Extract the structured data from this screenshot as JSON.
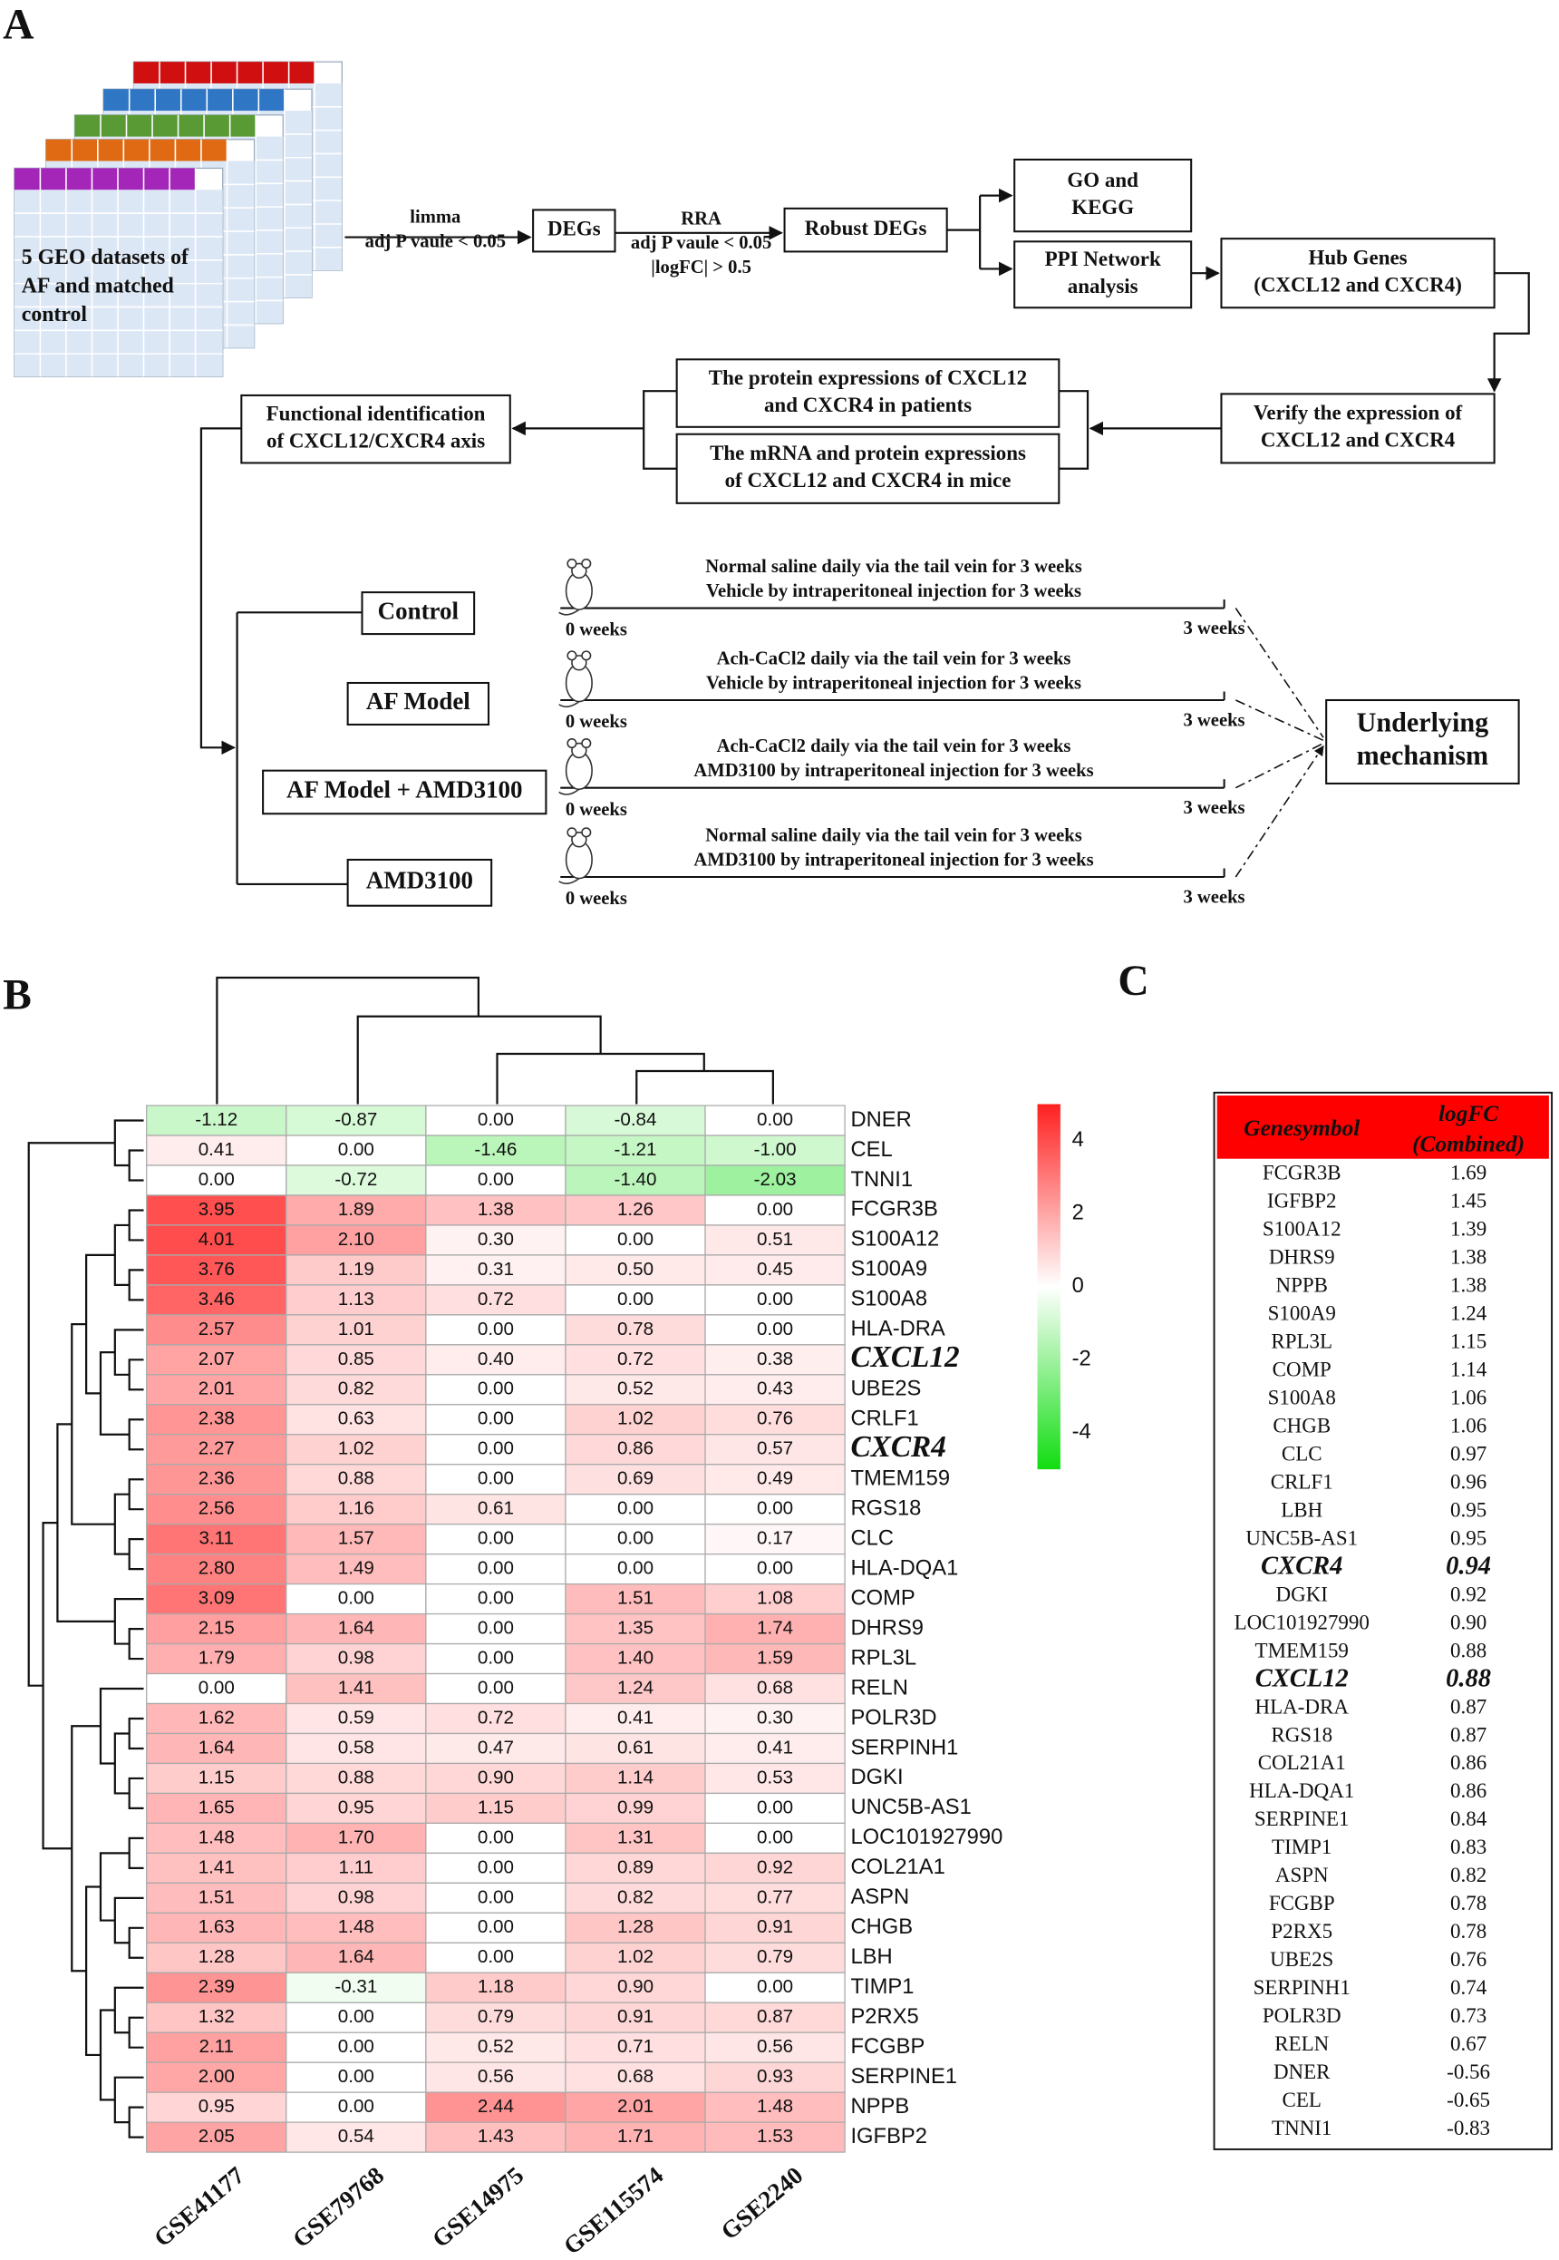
{
  "panel_labels": [
    "A",
    "B",
    "C"
  ],
  "flowchart": {
    "datasets_label": [
      "5 GEO datasets of",
      "AF and matched",
      "control"
    ],
    "edge_labels": [
      {
        "lines": [
          "limma",
          "adj P vaule < 0.05"
        ]
      },
      {
        "lines": [
          "RRA",
          "adj P vaule < 0.05",
          "|logFC| > 0.5"
        ]
      }
    ],
    "nodes": [
      {
        "lines": [
          "DEGs"
        ]
      },
      {
        "lines": [
          "Robust DEGs"
        ]
      },
      {
        "lines": [
          "GO and",
          "KEGG"
        ]
      },
      {
        "lines": [
          "PPI Network",
          "analysis"
        ]
      },
      {
        "lines": [
          "Hub Genes",
          "(CXCL12  and  CXCR4)"
        ]
      },
      {
        "lines": [
          "Verify  the expression of",
          "CXCL12  and  CXCR4"
        ]
      },
      {
        "lines": [
          "The protein expressions of CXCL12",
          "and  CXCR4  in patients"
        ]
      },
      {
        "lines": [
          "The  mRNA  and  protein  expressions",
          "of CXCL12  and  CXCR4  in mice"
        ]
      },
      {
        "lines": [
          "Functional identification",
          "of CXCL12/CXCR4  axis"
        ]
      },
      {
        "lines": [
          "Control"
        ]
      },
      {
        "lines": [
          "AF Model"
        ]
      },
      {
        "lines": [
          "AF Model + AMD3100"
        ]
      },
      {
        "lines": [
          "AMD3100"
        ]
      },
      {
        "lines": [
          "Underlying",
          "mechanism"
        ]
      }
    ],
    "timelines": [
      {
        "lines": [
          "Normal saline daily via the tail vein for 3 weeks",
          "Vehicle  by intraperitoneal injection for 3 weeks"
        ],
        "start": "0 weeks",
        "end": "3 weeks"
      },
      {
        "lines": [
          "Ach-CaCl2 daily via the tail vein for 3 weeks",
          "Vehicle  by intraperitoneal injection for 3 weeks"
        ],
        "start": "0 weeks",
        "end": "3 weeks"
      },
      {
        "lines": [
          "Ach-CaCl2 daily via the tail vein for 3 weeks",
          "AMD3100 by intraperitoneal injection for 3 weeks"
        ],
        "start": "0 weeks",
        "end": "3 weeks"
      },
      {
        "lines": [
          "Normal saline daily via the tail vein for 3 weeks",
          "AMD3100  by intraperitoneal injection for 3 weeks"
        ],
        "start": "0 weeks",
        "end": "3 weeks"
      }
    ]
  },
  "highlighted": [
    "CXCL12",
    "CXCR4"
  ],
  "heatmap": {
    "columns": [
      "GSE41177",
      "GSE79768",
      "GSE14975",
      "GSE115574",
      "GSE2240"
    ],
    "colors": {
      "high": "#ff2020",
      "mid": "#ffffff",
      "low": "#11dd11"
    },
    "clim": [
      -5,
      5
    ],
    "colorbar_ticks": [
      4,
      2,
      0,
      -2,
      -4
    ],
    "rows": [
      {
        "gene": "DNER",
        "values": [
          "-1.12",
          "-0.87",
          "0.00",
          "-0.84",
          "0.00"
        ]
      },
      {
        "gene": "CEL",
        "values": [
          "0.41",
          "0.00",
          "-1.46",
          "-1.21",
          "-1.00"
        ]
      },
      {
        "gene": "TNNI1",
        "values": [
          "0.00",
          "-0.72",
          "0.00",
          "-1.40",
          "-2.03"
        ]
      },
      {
        "gene": "FCGR3B",
        "values": [
          "3.95",
          "1.89",
          "1.38",
          "1.26",
          "0.00"
        ]
      },
      {
        "gene": "S100A12",
        "values": [
          "4.01",
          "2.10",
          "0.30",
          "0.00",
          "0.51"
        ]
      },
      {
        "gene": "S100A9",
        "values": [
          "3.76",
          "1.19",
          "0.31",
          "0.50",
          "0.45"
        ]
      },
      {
        "gene": "S100A8",
        "values": [
          "3.46",
          "1.13",
          "0.72",
          "0.00",
          "0.00"
        ]
      },
      {
        "gene": "HLA-DRA",
        "values": [
          "2.57",
          "1.01",
          "0.00",
          "0.78",
          "0.00"
        ]
      },
      {
        "gene": "CXCL12",
        "values": [
          "2.07",
          "0.85",
          "0.40",
          "0.72",
          "0.38"
        ]
      },
      {
        "gene": "UBE2S",
        "values": [
          "2.01",
          "0.82",
          "0.00",
          "0.52",
          "0.43"
        ]
      },
      {
        "gene": "CRLF1",
        "values": [
          "2.38",
          "0.63",
          "0.00",
          "1.02",
          "0.76"
        ]
      },
      {
        "gene": "CXCR4",
        "values": [
          "2.27",
          "1.02",
          "0.00",
          "0.86",
          "0.57"
        ]
      },
      {
        "gene": "TMEM159",
        "values": [
          "2.36",
          "0.88",
          "0.00",
          "0.69",
          "0.49"
        ]
      },
      {
        "gene": "RGS18",
        "values": [
          "2.56",
          "1.16",
          "0.61",
          "0.00",
          "0.00"
        ]
      },
      {
        "gene": "CLC",
        "values": [
          "3.11",
          "1.57",
          "0.00",
          "0.00",
          "0.17"
        ]
      },
      {
        "gene": "HLA-DQA1",
        "values": [
          "2.80",
          "1.49",
          "0.00",
          "0.00",
          "0.00"
        ]
      },
      {
        "gene": "COMP",
        "values": [
          "3.09",
          "0.00",
          "0.00",
          "1.51",
          "1.08"
        ]
      },
      {
        "gene": "DHRS9",
        "values": [
          "2.15",
          "1.64",
          "0.00",
          "1.35",
          "1.74"
        ]
      },
      {
        "gene": "RPL3L",
        "values": [
          "1.79",
          "0.98",
          "0.00",
          "1.40",
          "1.59"
        ]
      },
      {
        "gene": "RELN",
        "values": [
          "0.00",
          "1.41",
          "0.00",
          "1.24",
          "0.68"
        ]
      },
      {
        "gene": "POLR3D",
        "values": [
          "1.62",
          "0.59",
          "0.72",
          "0.41",
          "0.30"
        ]
      },
      {
        "gene": "SERPINH1",
        "values": [
          "1.64",
          "0.58",
          "0.47",
          "0.61",
          "0.41"
        ]
      },
      {
        "gene": "DGKI",
        "values": [
          "1.15",
          "0.88",
          "0.90",
          "1.14",
          "0.53"
        ]
      },
      {
        "gene": "UNC5B-AS1",
        "values": [
          "1.65",
          "0.95",
          "1.15",
          "0.99",
          "0.00"
        ]
      },
      {
        "gene": "LOC101927990",
        "values": [
          "1.48",
          "1.70",
          "0.00",
          "1.31",
          "0.00"
        ]
      },
      {
        "gene": "COL21A1",
        "values": [
          "1.41",
          "1.11",
          "0.00",
          "0.89",
          "0.92"
        ]
      },
      {
        "gene": "ASPN",
        "values": [
          "1.51",
          "0.98",
          "0.00",
          "0.82",
          "0.77"
        ]
      },
      {
        "gene": "CHGB",
        "values": [
          "1.63",
          "1.48",
          "0.00",
          "1.28",
          "0.91"
        ]
      },
      {
        "gene": "LBH",
        "values": [
          "1.28",
          "1.64",
          "0.00",
          "1.02",
          "0.79"
        ]
      },
      {
        "gene": "TIMP1",
        "values": [
          "2.39",
          "-0.31",
          "1.18",
          "0.90",
          "0.00"
        ]
      },
      {
        "gene": "P2RX5",
        "values": [
          "1.32",
          "0.00",
          "0.79",
          "0.91",
          "0.87"
        ]
      },
      {
        "gene": "FCGBP",
        "values": [
          "2.11",
          "0.00",
          "0.52",
          "0.71",
          "0.56"
        ]
      },
      {
        "gene": "SERPINE1",
        "values": [
          "2.00",
          "0.00",
          "0.56",
          "0.68",
          "0.93"
        ]
      },
      {
        "gene": "NPPB",
        "values": [
          "0.95",
          "0.00",
          "2.44",
          "2.01",
          "1.48"
        ]
      },
      {
        "gene": "IGFBP2",
        "values": [
          "2.05",
          "0.54",
          "1.43",
          "1.71",
          "1.53"
        ]
      }
    ]
  },
  "table": {
    "header": [
      "Genesymbol",
      [
        "logFC",
        "(Combined)"
      ]
    ],
    "rows": [
      [
        "FCGR3B",
        "1.69"
      ],
      [
        "IGFBP2",
        "1.45"
      ],
      [
        "S100A12",
        "1.39"
      ],
      [
        "DHRS9",
        "1.38"
      ],
      [
        "NPPB",
        "1.38"
      ],
      [
        "S100A9",
        "1.24"
      ],
      [
        "RPL3L",
        "1.15"
      ],
      [
        "COMP",
        "1.14"
      ],
      [
        "S100A8",
        "1.06"
      ],
      [
        "CHGB",
        "1.06"
      ],
      [
        "CLC",
        "0.97"
      ],
      [
        "CRLF1",
        "0.96"
      ],
      [
        "LBH",
        "0.95"
      ],
      [
        "UNC5B-AS1",
        "0.95"
      ],
      [
        "CXCR4",
        "0.94"
      ],
      [
        "DGKI",
        "0.92"
      ],
      [
        "LOC101927990",
        "0.90"
      ],
      [
        "TMEM159",
        "0.88"
      ],
      [
        "CXCL12",
        "0.88"
      ],
      [
        "HLA-DRA",
        "0.87"
      ],
      [
        "RGS18",
        "0.87"
      ],
      [
        "COL21A1",
        "0.86"
      ],
      [
        "HLA-DQA1",
        "0.86"
      ],
      [
        "SERPINE1",
        "0.84"
      ],
      [
        "TIMP1",
        "0.83"
      ],
      [
        "ASPN",
        "0.82"
      ],
      [
        "FCGBP",
        "0.78"
      ],
      [
        "P2RX5",
        "0.78"
      ],
      [
        "UBE2S",
        "0.76"
      ],
      [
        "SERPINH1",
        "0.74"
      ],
      [
        "POLR3D",
        "0.73"
      ],
      [
        "RELN",
        "0.67"
      ],
      [
        "DNER",
        "-0.56"
      ],
      [
        "CEL",
        "-0.65"
      ],
      [
        "TNNI1",
        "-0.83"
      ]
    ]
  }
}
